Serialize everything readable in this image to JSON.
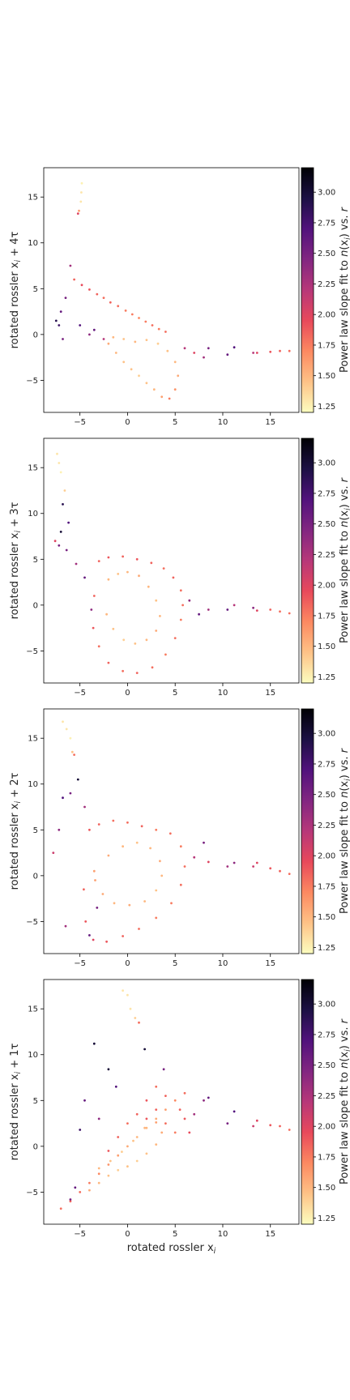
{
  "colormap": {
    "name": "magma_r",
    "stops": [
      "#fcfdbf",
      "#fec287",
      "#fc8961",
      "#e8495b",
      "#b73779",
      "#822681",
      "#51127c",
      "#1c1044",
      "#000004"
    ]
  },
  "chart_data": [
    {
      "type": "scatter",
      "ylabel": "rotated rossler xi + 4τ",
      "xlabel": "",
      "xlim": [
        -8.8,
        18.0
      ],
      "ylim": [
        -8.5,
        18.2
      ],
      "xticks": [
        -5,
        0,
        5,
        10,
        15
      ],
      "yticks": [
        -5,
        0,
        5,
        10,
        15
      ],
      "colorbar": {
        "label": "Power law slope fit to n(xi) vs. r",
        "range": [
          1.2,
          3.2
        ],
        "ticks": [
          1.25,
          1.5,
          1.75,
          2.0,
          2.25,
          2.5,
          2.75,
          3.0
        ]
      },
      "series": [
        {
          "x": [
            -5.6,
            -4.8,
            -4.0,
            -3.2,
            -2.5,
            -1.8,
            -1.0,
            -0.2,
            0.5,
            1.2,
            1.9,
            2.6,
            3.3,
            4.0
          ],
          "y": [
            6.0,
            5.4,
            4.9,
            4.4,
            4.0,
            3.5,
            3.1,
            2.6,
            2.2,
            1.8,
            1.4,
            1.0,
            0.6,
            0.3
          ],
          "c": [
            1.85,
            1.95,
            1.9,
            1.85,
            1.8,
            1.85,
            1.8,
            1.75,
            1.75,
            1.7,
            1.75,
            1.8,
            1.75,
            1.8
          ]
        },
        {
          "x": [
            -2.0,
            -1.2,
            -0.4,
            0.4,
            1.2,
            2.0,
            2.8,
            3.6,
            4.4,
            5.0,
            5.3,
            5.0,
            4.2,
            3.2,
            2.0,
            0.8,
            -0.4,
            -1.5
          ],
          "y": [
            -1.0,
            -2.0,
            -3.0,
            -3.8,
            -4.5,
            -5.3,
            -6.0,
            -6.8,
            -7.0,
            -6.0,
            -4.5,
            -3.0,
            -1.8,
            -1.0,
            -0.6,
            -0.8,
            -0.5,
            -0.3
          ],
          "c": [
            1.55,
            1.5,
            1.45,
            1.45,
            1.4,
            1.45,
            1.5,
            1.6,
            1.75,
            1.65,
            1.55,
            1.5,
            1.45,
            1.4,
            1.45,
            1.5,
            1.45,
            1.5
          ]
        },
        {
          "x": [
            -7.5,
            -7.0,
            -6.5,
            -6.0,
            -5.0,
            -4.0,
            -6.8,
            -7.2,
            -3.5,
            -2.5
          ],
          "y": [
            1.5,
            2.5,
            4.0,
            7.5,
            1.0,
            0.0,
            -0.5,
            1.0,
            0.5,
            -0.5
          ],
          "c": [
            2.9,
            2.6,
            2.5,
            2.3,
            2.7,
            2.4,
            2.5,
            2.8,
            2.6,
            2.2
          ]
        },
        {
          "x": [
            6.0,
            7.0,
            8.0,
            8.5,
            10.5,
            11.2,
            13.2,
            13.6,
            15.0,
            16.0,
            17.0
          ],
          "y": [
            -1.5,
            -2.0,
            -2.5,
            -1.5,
            -2.2,
            -1.4,
            -2.0,
            -2.0,
            -1.9,
            -1.8,
            -1.8
          ],
          "c": [
            2.2,
            2.0,
            2.3,
            2.5,
            2.6,
            2.7,
            2.2,
            2.0,
            1.9,
            1.85,
            1.8
          ]
        },
        {
          "x": [
            -4.9,
            -4.85,
            -4.8,
            -5.1,
            -5.2
          ],
          "y": [
            14.5,
            15.5,
            16.5,
            13.5,
            13.2
          ],
          "c": [
            1.3,
            1.3,
            1.25,
            1.6,
            2.0
          ]
        }
      ]
    },
    {
      "type": "scatter",
      "ylabel": "rotated rossler xi + 3τ",
      "xlabel": "",
      "xlim": [
        -8.8,
        18.0
      ],
      "ylim": [
        -8.5,
        18.2
      ],
      "xticks": [
        -5,
        0,
        5,
        10,
        15
      ],
      "yticks": [
        -5,
        0,
        5,
        10,
        15
      ],
      "colorbar": {
        "label": "Power law slope fit to n(xi) vs. r",
        "range": [
          1.2,
          3.2
        ],
        "ticks": [
          1.25,
          1.5,
          1.75,
          2.0,
          2.25,
          2.5,
          2.75,
          3.0
        ]
      },
      "series": [
        {
          "x": [
            -3.0,
            -2.0,
            -0.5,
            1.0,
            2.5,
            3.8,
            4.8,
            5.6,
            5.8,
            5.6,
            5.0,
            4.0,
            2.6,
            1.0,
            -0.5,
            -2.0,
            -3.0,
            -3.6,
            -3.5
          ],
          "y": [
            4.8,
            5.2,
            5.3,
            5.0,
            4.6,
            4.0,
            3.0,
            1.6,
            0.0,
            -1.6,
            -3.6,
            -5.4,
            -6.8,
            -7.4,
            -7.2,
            -6.3,
            -4.5,
            -2.5,
            1.0
          ],
          "c": [
            1.85,
            1.9,
            1.85,
            1.9,
            1.85,
            1.8,
            1.85,
            1.8,
            1.8,
            1.75,
            1.8,
            1.75,
            1.8,
            1.85,
            1.8,
            1.85,
            1.8,
            1.9,
            1.85
          ]
        },
        {
          "x": [
            -2.0,
            -1.0,
            0.0,
            1.2,
            2.2,
            3.0,
            3.4,
            3.0,
            2.0,
            0.8,
            -0.4,
            -1.5,
            -2.2
          ],
          "y": [
            2.8,
            3.4,
            3.6,
            3.2,
            2.0,
            0.5,
            -1.2,
            -2.8,
            -3.8,
            -4.2,
            -3.8,
            -2.6,
            -1.0
          ],
          "c": [
            1.5,
            1.45,
            1.5,
            1.55,
            1.5,
            1.45,
            1.5,
            1.55,
            1.5,
            1.45,
            1.4,
            1.45,
            1.5
          ]
        },
        {
          "x": [
            -7.6,
            -7.2,
            -6.8,
            -6.2,
            -5.4,
            -4.5,
            -3.8,
            -7.0,
            -6.4
          ],
          "y": [
            7.0,
            6.5,
            11.0,
            9.0,
            4.5,
            3.0,
            -0.5,
            8.0,
            6.0
          ],
          "c": [
            2.0,
            2.5,
            2.9,
            2.7,
            2.3,
            2.6,
            2.4,
            3.0,
            2.5
          ]
        },
        {
          "x": [
            6.5,
            7.5,
            8.5,
            10.5,
            11.2,
            13.2,
            13.6,
            15.0,
            16.0,
            17.0
          ],
          "y": [
            0.5,
            -1.0,
            -0.5,
            -0.5,
            0.0,
            -0.3,
            -0.6,
            -0.5,
            -0.7,
            -0.9
          ],
          "c": [
            2.4,
            2.6,
            2.3,
            2.6,
            2.2,
            2.4,
            2.0,
            1.85,
            1.8,
            1.8
          ]
        },
        {
          "x": [
            -7.4,
            -7.2,
            -7.0,
            -6.6
          ],
          "y": [
            16.5,
            15.5,
            14.5,
            12.5
          ],
          "c": [
            1.3,
            1.3,
            1.25,
            1.4
          ]
        }
      ]
    },
    {
      "type": "scatter",
      "ylabel": "rotated rossler xi + 2τ",
      "xlabel": "",
      "xlim": [
        -8.8,
        18.0
      ],
      "ylim": [
        -8.5,
        18.2
      ],
      "xticks": [
        -5,
        0,
        5,
        10,
        15
      ],
      "yticks": [
        -5,
        0,
        5,
        10,
        15
      ],
      "colorbar": {
        "label": "Power law slope fit to n(xi) vs. r",
        "range": [
          1.2,
          3.2
        ],
        "ticks": [
          1.25,
          1.5,
          1.75,
          2.0,
          2.25,
          2.5,
          2.75,
          3.0
        ]
      },
      "series": [
        {
          "x": [
            -4.0,
            -3.0,
            -1.5,
            0.0,
            1.5,
            3.0,
            4.5,
            5.6,
            6.0,
            5.6,
            4.6,
            3.0,
            1.2,
            -0.5,
            -2.2,
            -3.6,
            -4.4,
            -4.6
          ],
          "y": [
            5.0,
            5.6,
            6.0,
            5.8,
            5.4,
            5.0,
            4.6,
            3.2,
            1.0,
            -1.0,
            -3.0,
            -4.6,
            -5.8,
            -6.6,
            -7.2,
            -7.0,
            -5.0,
            -1.5
          ],
          "c": [
            1.9,
            1.85,
            1.8,
            1.8,
            1.85,
            1.75,
            1.8,
            1.75,
            1.8,
            1.8,
            1.75,
            1.75,
            1.8,
            1.85,
            1.9,
            2.0,
            1.9,
            1.85
          ]
        },
        {
          "x": [
            -3.5,
            -2.0,
            -0.5,
            1.0,
            2.4,
            3.4,
            3.6,
            3.0,
            1.8,
            0.2,
            -1.4,
            -2.6,
            -3.4
          ],
          "y": [
            0.5,
            2.2,
            3.2,
            3.6,
            3.0,
            1.6,
            0.0,
            -1.6,
            -2.8,
            -3.2,
            -3.0,
            -2.0,
            -0.5
          ],
          "c": [
            1.6,
            1.55,
            1.5,
            1.45,
            1.5,
            1.55,
            1.5,
            1.45,
            1.5,
            1.55,
            1.5,
            1.55,
            1.6
          ]
        },
        {
          "x": [
            -7.8,
            -7.2,
            -6.8,
            -6.0,
            -5.2,
            -4.5,
            -3.2,
            -6.5,
            -4.0
          ],
          "y": [
            2.5,
            5.0,
            8.5,
            9.0,
            10.5,
            7.5,
            -3.5,
            -5.5,
            -6.5
          ],
          "c": [
            2.1,
            2.4,
            2.7,
            2.5,
            3.0,
            2.3,
            2.5,
            2.3,
            2.6
          ]
        },
        {
          "x": [
            7.0,
            8.0,
            8.5,
            10.5,
            11.2,
            13.2,
            13.6,
            15.0,
            16.0,
            17.0
          ],
          "y": [
            2.0,
            3.6,
            1.5,
            1.0,
            1.4,
            1.0,
            1.4,
            0.8,
            0.5,
            0.2
          ],
          "c": [
            2.2,
            2.5,
            2.0,
            2.3,
            2.4,
            2.1,
            2.0,
            1.9,
            1.85,
            1.8
          ]
        },
        {
          "x": [
            -6.8,
            -6.4,
            -6.0,
            -5.8,
            -5.6
          ],
          "y": [
            16.8,
            16.0,
            15.0,
            13.5,
            13.2
          ],
          "c": [
            1.3,
            1.3,
            1.25,
            1.45,
            1.8
          ]
        }
      ]
    },
    {
      "type": "scatter",
      "ylabel": "rotated rossler xi + 1τ",
      "xlabel": "rotated rossler xi",
      "xlim": [
        -8.8,
        18.0
      ],
      "ylim": [
        -8.5,
        18.2
      ],
      "xticks": [
        -5,
        0,
        5,
        10,
        15
      ],
      "yticks": [
        -5,
        0,
        5,
        10,
        15
      ],
      "colorbar": {
        "label": "Power law slope fit to n(xi) vs. r",
        "range": [
          1.2,
          3.2
        ],
        "ticks": [
          1.25,
          1.5,
          1.75,
          2.0,
          2.25,
          2.5,
          2.75,
          3.0
        ]
      },
      "series": [
        {
          "x": [
            -7.0,
            -6.0,
            -5.0,
            -4.0,
            -3.0,
            -2.0,
            -1.0,
            0.0,
            1.0,
            2.0,
            3.0,
            4.0,
            5.0,
            6.0
          ],
          "y": [
            -6.8,
            -6.0,
            -5.0,
            -4.0,
            -3.0,
            -2.0,
            -1.0,
            0.0,
            1.0,
            2.0,
            3.0,
            4.0,
            5.0,
            5.8
          ],
          "c": [
            1.8,
            1.85,
            1.8,
            1.75,
            1.7,
            1.65,
            1.6,
            1.55,
            1.5,
            1.5,
            1.55,
            1.6,
            1.7,
            1.8
          ]
        },
        {
          "x": [
            -4.0,
            -3.0,
            -2.0,
            -1.0,
            0.0,
            1.0,
            2.0,
            3.0,
            3.6,
            3.0,
            1.8,
            0.6,
            -0.6,
            -1.8,
            -3.0
          ],
          "y": [
            -4.8,
            -4.0,
            -3.2,
            -2.6,
            -2.2,
            -1.6,
            -0.8,
            0.2,
            1.5,
            2.6,
            2.0,
            0.6,
            -0.6,
            -1.6,
            -2.4
          ],
          "c": [
            1.55,
            1.5,
            1.45,
            1.4,
            1.45,
            1.4,
            1.45,
            1.5,
            1.55,
            1.6,
            1.5,
            1.45,
            1.4,
            1.45,
            1.5
          ]
        },
        {
          "x": [
            -2.0,
            -1.0,
            0.0,
            1.0,
            2.0,
            3.0,
            4.0,
            5.0,
            5.5,
            6.0,
            6.5,
            4.0,
            3.0,
            2.0
          ],
          "y": [
            -0.5,
            1.0,
            2.5,
            3.5,
            3.0,
            4.0,
            2.5,
            1.5,
            4.0,
            3.0,
            1.5,
            5.5,
            6.5,
            5.0
          ],
          "c": [
            1.9,
            1.85,
            1.8,
            1.85,
            1.9,
            1.85,
            1.8,
            1.75,
            1.85,
            1.9,
            1.95,
            1.85,
            1.8,
            1.9
          ]
        },
        {
          "x": [
            -5.0,
            -3.5,
            -2.0,
            -1.2,
            1.8,
            3.8,
            -4.5,
            -3.0,
            -6.0,
            -5.5
          ],
          "y": [
            1.8,
            11.2,
            8.4,
            6.5,
            10.6,
            8.4,
            5.0,
            3.0,
            -5.8,
            -4.5
          ],
          "c": [
            2.8,
            3.0,
            3.0,
            2.7,
            3.0,
            2.5,
            2.6,
            2.4,
            2.5,
            2.6
          ]
        },
        {
          "x": [
            7.0,
            8.0,
            8.5,
            10.5,
            11.2,
            13.2,
            13.6,
            15.0,
            16.0,
            17.0
          ],
          "y": [
            3.5,
            5.0,
            5.3,
            2.5,
            3.8,
            2.2,
            2.8,
            2.3,
            2.2,
            1.8
          ],
          "c": [
            2.3,
            2.4,
            2.6,
            2.5,
            2.7,
            2.1,
            2.0,
            1.9,
            1.85,
            1.8
          ]
        },
        {
          "x": [
            -0.5,
            0.0,
            0.3,
            0.8,
            1.2
          ],
          "y": [
            17.0,
            16.5,
            15.0,
            14.0,
            13.5
          ],
          "c": [
            1.3,
            1.3,
            1.3,
            1.4,
            1.8
          ]
        }
      ]
    }
  ]
}
